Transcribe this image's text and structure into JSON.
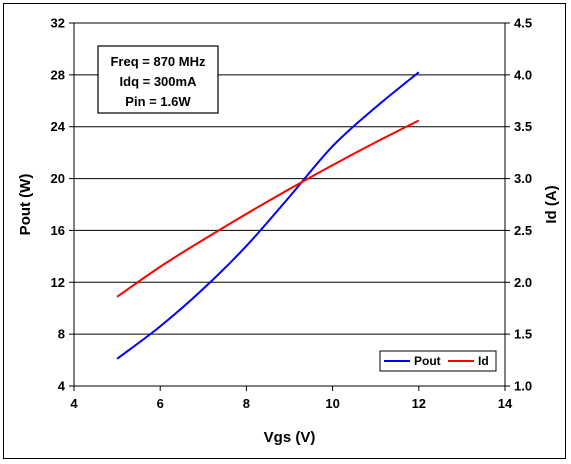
{
  "chart_data": {
    "type": "line",
    "xlabel": "Vgs (V)",
    "ylabel": "Pout (W)",
    "y2label": "Id (A)",
    "xlim": [
      4,
      14
    ],
    "ylim": [
      4,
      32
    ],
    "y2lim": [
      1.0,
      4.5
    ],
    "xticks": [
      "4",
      "6",
      "8",
      "10",
      "12",
      "14"
    ],
    "yticks": [
      "4",
      "8",
      "12",
      "16",
      "20",
      "24",
      "28",
      "32"
    ],
    "y2ticks": [
      "1.0",
      "1.5",
      "2.0",
      "2.5",
      "3.0",
      "3.5",
      "4.0",
      "4.5"
    ],
    "grid": "horizontal",
    "legend_position": "bottom-right",
    "annotation": [
      "Freq = 870 MHz",
      "Idq = 300mA",
      "Pin = 1.6W"
    ],
    "series": [
      {
        "name": "Pout",
        "axis": "left",
        "color": "#0000ff",
        "x": [
          5,
          6,
          7,
          8,
          9,
          10,
          11,
          12
        ],
        "y": [
          6.1,
          8.6,
          11.5,
          14.8,
          18.6,
          22.5,
          25.5,
          28.2
        ]
      },
      {
        "name": "Id",
        "axis": "right",
        "color": "#ff0000",
        "x": [
          5,
          6,
          7,
          8,
          9,
          10,
          11,
          12
        ],
        "y": [
          1.86,
          2.15,
          2.41,
          2.66,
          2.9,
          3.13,
          3.35,
          3.56
        ]
      }
    ]
  }
}
